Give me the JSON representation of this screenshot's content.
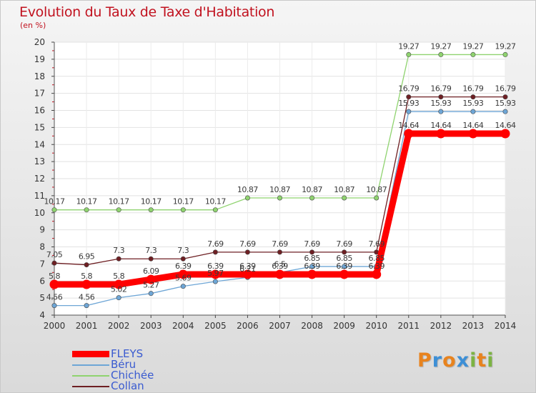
{
  "title": "Evolution du Taux de Taxe d'Habitation",
  "unit_label": "(en %)",
  "brand": {
    "letters": [
      "P",
      "r",
      "o",
      "x",
      "i",
      "t",
      "i"
    ],
    "colors": [
      "#e8831e",
      "#3d8fd6",
      "#e8831e",
      "#3d8fd6",
      "#7cb342",
      "#e8831e",
      "#7cb342"
    ]
  },
  "chart_data": {
    "type": "line",
    "title": "Evolution du Taux de Taxe d'Habitation",
    "ylabel": "(en %)",
    "xlabel": "",
    "x": [
      2000,
      2001,
      2002,
      2003,
      2004,
      2005,
      2006,
      2007,
      2008,
      2009,
      2010,
      2011,
      2012,
      2013,
      2014
    ],
    "x_tick_labels": [
      "2000",
      "2001",
      "2002",
      "2003",
      "2004",
      "2005",
      "2006",
      "2007",
      "2008",
      "2009",
      "2010",
      "2011",
      "2012",
      "2013",
      "2014"
    ],
    "ylim": [
      4,
      20
    ],
    "y_ticks": [
      4,
      5,
      6,
      7,
      8,
      9,
      10,
      11,
      12,
      13,
      14,
      15,
      16,
      17,
      18,
      19,
      20
    ],
    "y_tick_labels": [
      "4",
      "5",
      "6",
      "7",
      "8",
      "9",
      "10",
      "11",
      "12",
      "13",
      "14",
      "15",
      "16",
      "17",
      "18",
      "19",
      "20"
    ],
    "grid": true,
    "legend_position": "bottom-left",
    "series": [
      {
        "name": "Collan",
        "color": "#6e1f23",
        "values": [
          7.05,
          6.95,
          7.3,
          7.3,
          7.3,
          7.69,
          7.69,
          7.69,
          7.69,
          7.69,
          7.69,
          16.79,
          16.79,
          16.79,
          16.79
        ],
        "labels": [
          "7.05",
          "6.95",
          "7.3",
          "7.3",
          "7.3",
          "7.69",
          "7.69",
          "7.69",
          "7.69",
          "7.69",
          "7.69",
          "16.79",
          "16.79",
          "16.79",
          "16.79"
        ]
      },
      {
        "name": "Chichée",
        "color": "#8fd36f",
        "values": [
          10.17,
          10.17,
          10.17,
          10.17,
          10.17,
          10.17,
          10.87,
          10.87,
          10.87,
          10.87,
          10.87,
          19.27,
          19.27,
          19.27,
          19.27
        ],
        "labels": [
          "10.17",
          "10.17",
          "10.17",
          "10.17",
          "10.17",
          "10.17",
          "10.87",
          "10.87",
          "10.87",
          "10.87",
          "10.87",
          "19.27",
          "19.27",
          "19.27",
          "19.27"
        ]
      },
      {
        "name": "Béru",
        "color": "#6ea6d6",
        "values": [
          4.56,
          4.56,
          5.02,
          5.27,
          5.69,
          5.97,
          6.21,
          6.5,
          6.85,
          6.85,
          6.85,
          15.93,
          15.93,
          15.93,
          15.93
        ],
        "labels": [
          "4.56",
          "4.56",
          "5.02",
          "5.27",
          "5.69",
          "5.97",
          "6.21",
          "6.5",
          "6.85",
          "6.85",
          "6.85",
          "15.93",
          "15.93",
          "15.93",
          "15.93"
        ]
      },
      {
        "name": "FLEYS",
        "color": "#ff0000",
        "values": [
          5.8,
          5.8,
          5.8,
          6.09,
          6.39,
          6.39,
          6.39,
          6.39,
          6.39,
          6.39,
          6.39,
          14.64,
          14.64,
          14.64,
          14.64
        ],
        "labels": [
          "5.8",
          "5.8",
          "5.8",
          "6.09",
          "6.39",
          "6.39",
          "6.39",
          "6.39",
          "6.39",
          "6.39",
          "6.39",
          "14.64",
          "14.64",
          "14.64",
          "14.64"
        ]
      }
    ],
    "legend": [
      "FLEYS",
      "Béru",
      "Chichée",
      "Collan"
    ]
  }
}
